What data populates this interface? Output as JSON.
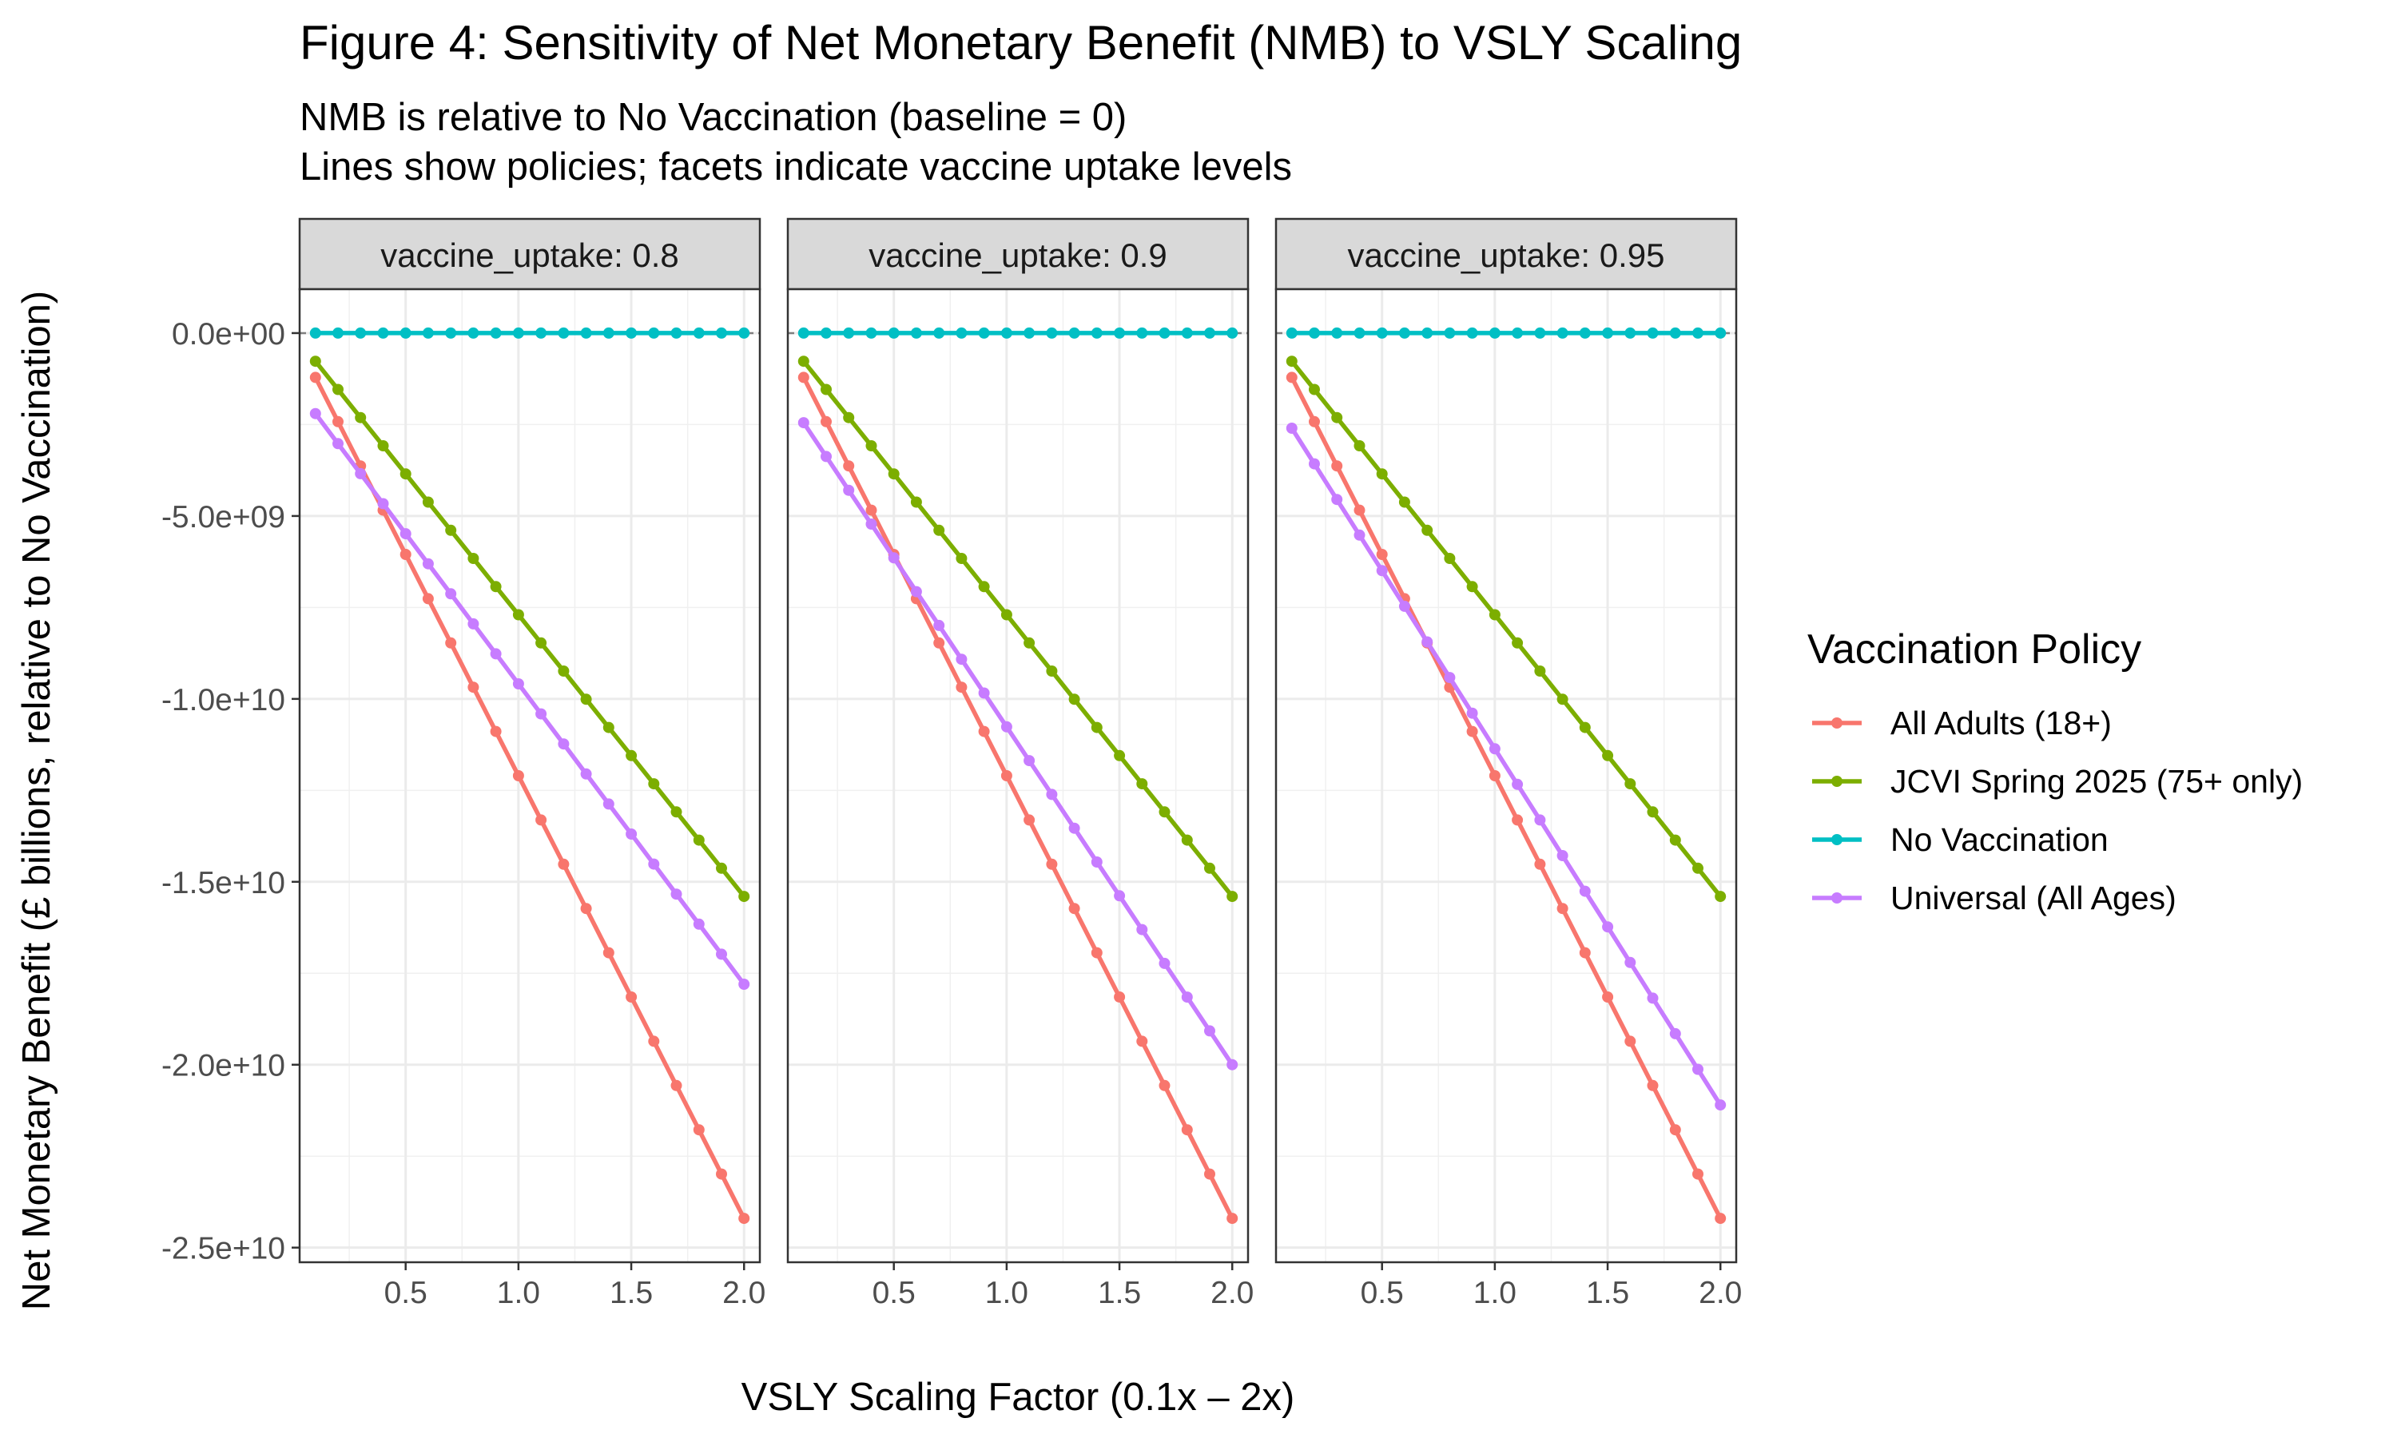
{
  "chart_data": {
    "type": "line",
    "title": "Figure 4: Sensitivity of Net Monetary Benefit (NMB) to VSLY Scaling",
    "subtitle_lines": [
      "NMB is relative to No Vaccination (baseline = 0)",
      "Lines show policies; facets indicate vaccine uptake levels"
    ],
    "xlabel": "VSLY Scaling Factor (0.1x – 2x)",
    "ylabel": "Net Monetary Benefit (£ billions, relative to No Vaccination)",
    "xlim": [
      0.03,
      2.07
    ],
    "ylim": [
      -25400000000.0,
      1200000000.0
    ],
    "x_ticks": [
      0.5,
      1.0,
      1.5,
      2.0
    ],
    "x_tick_labels": [
      "0.5",
      "1.0",
      "1.5",
      "2.0"
    ],
    "y_ticks": [
      0,
      -5000000000.0,
      -10000000000.0,
      -15000000000.0,
      -20000000000.0,
      -25000000000.0
    ],
    "y_tick_labels": [
      "0.0e+00",
      "-5.0e+09",
      "-1.0e+10",
      "-1.5e+10",
      "-2.0e+10",
      "-2.5e+10"
    ],
    "grid": true,
    "legend_title": "Vaccination Policy",
    "legend_position": "right",
    "x": [
      0.1,
      0.2,
      0.3,
      0.4,
      0.5,
      0.6,
      0.7,
      0.8,
      0.9,
      1.0,
      1.1,
      1.2,
      1.3,
      1.4,
      1.5,
      1.6,
      1.7,
      1.8,
      1.9,
      2.0
    ],
    "facets": [
      {
        "label": "vaccine_uptake: 0.8",
        "series": [
          {
            "name": "All Adults (18+)",
            "color": "#F8766D",
            "start": -1210000000.0,
            "end": -24200000000.0
          },
          {
            "name": "JCVI Spring 2025 (75+ only)",
            "color": "#7CAE00",
            "start": -770000000.0,
            "end": -15400000000.0
          },
          {
            "name": "No Vaccination",
            "color": "#00BFC4",
            "start": 0,
            "end": 0
          },
          {
            "name": "Universal (All Ages)",
            "color": "#C77CFF",
            "start": -2200000000.0,
            "end": -17800000000.0
          }
        ]
      },
      {
        "label": "vaccine_uptake: 0.9",
        "series": [
          {
            "name": "All Adults (18+)",
            "color": "#F8766D",
            "start": -1210000000.0,
            "end": -24200000000.0
          },
          {
            "name": "JCVI Spring 2025 (75+ only)",
            "color": "#7CAE00",
            "start": -770000000.0,
            "end": -15400000000.0
          },
          {
            "name": "No Vaccination",
            "color": "#00BFC4",
            "start": 0,
            "end": 0
          },
          {
            "name": "Universal (All Ages)",
            "color": "#C77CFF",
            "start": -2450000000.0,
            "end": -20000000000.0
          }
        ]
      },
      {
        "label": "vaccine_uptake: 0.95",
        "series": [
          {
            "name": "All Adults (18+)",
            "color": "#F8766D",
            "start": -1210000000.0,
            "end": -24200000000.0
          },
          {
            "name": "JCVI Spring 2025 (75+ only)",
            "color": "#7CAE00",
            "start": -770000000.0,
            "end": -15400000000.0
          },
          {
            "name": "No Vaccination",
            "color": "#00BFC4",
            "start": 0,
            "end": 0
          },
          {
            "name": "Universal (All Ages)",
            "color": "#C77CFF",
            "start": -2600000000.0,
            "end": -21100000000.0
          }
        ]
      }
    ],
    "legend_items": [
      {
        "name": "All Adults (18+)",
        "color": "#F8766D"
      },
      {
        "name": "JCVI Spring 2025 (75+ only)",
        "color": "#7CAE00"
      },
      {
        "name": "No Vaccination",
        "color": "#00BFC4"
      },
      {
        "name": "Universal (All Ages)",
        "color": "#C77CFF"
      }
    ]
  }
}
